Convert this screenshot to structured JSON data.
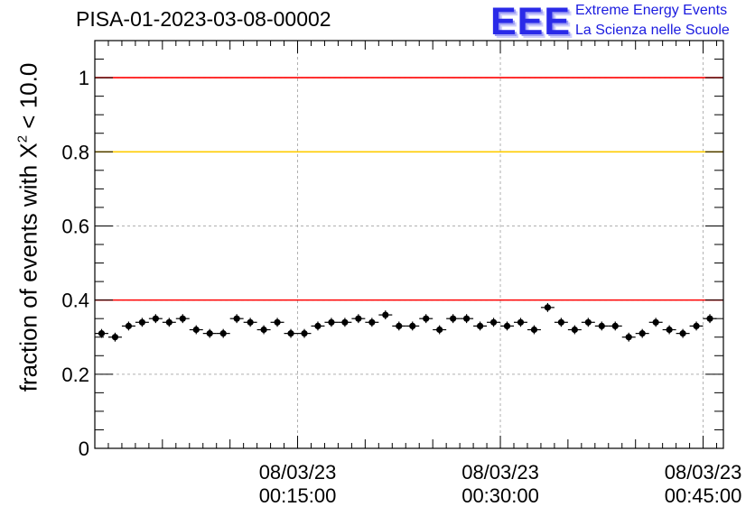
{
  "header": {
    "run_title": "PISA-01-2023-03-08-00002"
  },
  "logo": {
    "mark": "EEE",
    "line1": "Extreme Energy Events",
    "line2": "La Scienza nelle Scuole"
  },
  "chart_data": {
    "type": "scatter",
    "title": "PISA-01-2023-03-08-00002",
    "ylabel": {
      "prefix": "fraction of events with X",
      "superscript": "2",
      "suffix": " < 10.0"
    },
    "xlabel": "",
    "ylim": [
      0,
      1.1
    ],
    "xlim_minutes": [
      0,
      46.5
    ],
    "y_ticks": [
      "0",
      "0.2",
      "0.4",
      "0.6",
      "0.8",
      "1"
    ],
    "x_ticks": [
      {
        "minute": 15,
        "date": "08/03/23",
        "time": "00:15:00"
      },
      {
        "minute": 30,
        "date": "08/03/23",
        "time": "00:30:00"
      },
      {
        "minute": 45,
        "date": "08/03/23",
        "time": "00:45:00"
      }
    ],
    "grid": true,
    "reference_lines": [
      {
        "y": 1.0,
        "color": "#ff0000"
      },
      {
        "y": 0.8,
        "color": "#ffcc00"
      },
      {
        "y": 0.4,
        "color": "#ff0000"
      }
    ],
    "series": [
      {
        "marker_color": "#000000",
        "points": [
          {
            "x": 0.5,
            "y": 0.31
          },
          {
            "x": 1.5,
            "y": 0.3
          },
          {
            "x": 2.5,
            "y": 0.33
          },
          {
            "x": 3.5,
            "y": 0.34
          },
          {
            "x": 4.5,
            "y": 0.35
          },
          {
            "x": 5.5,
            "y": 0.34
          },
          {
            "x": 6.5,
            "y": 0.35
          },
          {
            "x": 7.5,
            "y": 0.32
          },
          {
            "x": 8.5,
            "y": 0.31
          },
          {
            "x": 9.5,
            "y": 0.31
          },
          {
            "x": 10.5,
            "y": 0.35
          },
          {
            "x": 11.5,
            "y": 0.34
          },
          {
            "x": 12.5,
            "y": 0.32
          },
          {
            "x": 13.5,
            "y": 0.34
          },
          {
            "x": 14.5,
            "y": 0.31
          },
          {
            "x": 15.5,
            "y": 0.31
          },
          {
            "x": 16.5,
            "y": 0.33
          },
          {
            "x": 17.5,
            "y": 0.34
          },
          {
            "x": 18.5,
            "y": 0.34
          },
          {
            "x": 19.5,
            "y": 0.35
          },
          {
            "x": 20.5,
            "y": 0.34
          },
          {
            "x": 21.5,
            "y": 0.36
          },
          {
            "x": 22.5,
            "y": 0.33
          },
          {
            "x": 23.5,
            "y": 0.33
          },
          {
            "x": 24.5,
            "y": 0.35
          },
          {
            "x": 25.5,
            "y": 0.32
          },
          {
            "x": 26.5,
            "y": 0.35
          },
          {
            "x": 27.5,
            "y": 0.35
          },
          {
            "x": 28.5,
            "y": 0.33
          },
          {
            "x": 29.5,
            "y": 0.34
          },
          {
            "x": 30.5,
            "y": 0.33
          },
          {
            "x": 31.5,
            "y": 0.34
          },
          {
            "x": 32.5,
            "y": 0.32
          },
          {
            "x": 33.5,
            "y": 0.38
          },
          {
            "x": 34.5,
            "y": 0.34
          },
          {
            "x": 35.5,
            "y": 0.32
          },
          {
            "x": 36.5,
            "y": 0.34
          },
          {
            "x": 37.5,
            "y": 0.33
          },
          {
            "x": 38.5,
            "y": 0.33
          },
          {
            "x": 39.5,
            "y": 0.3
          },
          {
            "x": 40.5,
            "y": 0.31
          },
          {
            "x": 41.5,
            "y": 0.34
          },
          {
            "x": 42.5,
            "y": 0.32
          },
          {
            "x": 43.5,
            "y": 0.31
          },
          {
            "x": 44.5,
            "y": 0.33
          },
          {
            "x": 45.5,
            "y": 0.35
          }
        ],
        "y_error": 0.012,
        "x_error": 0.5
      }
    ]
  }
}
